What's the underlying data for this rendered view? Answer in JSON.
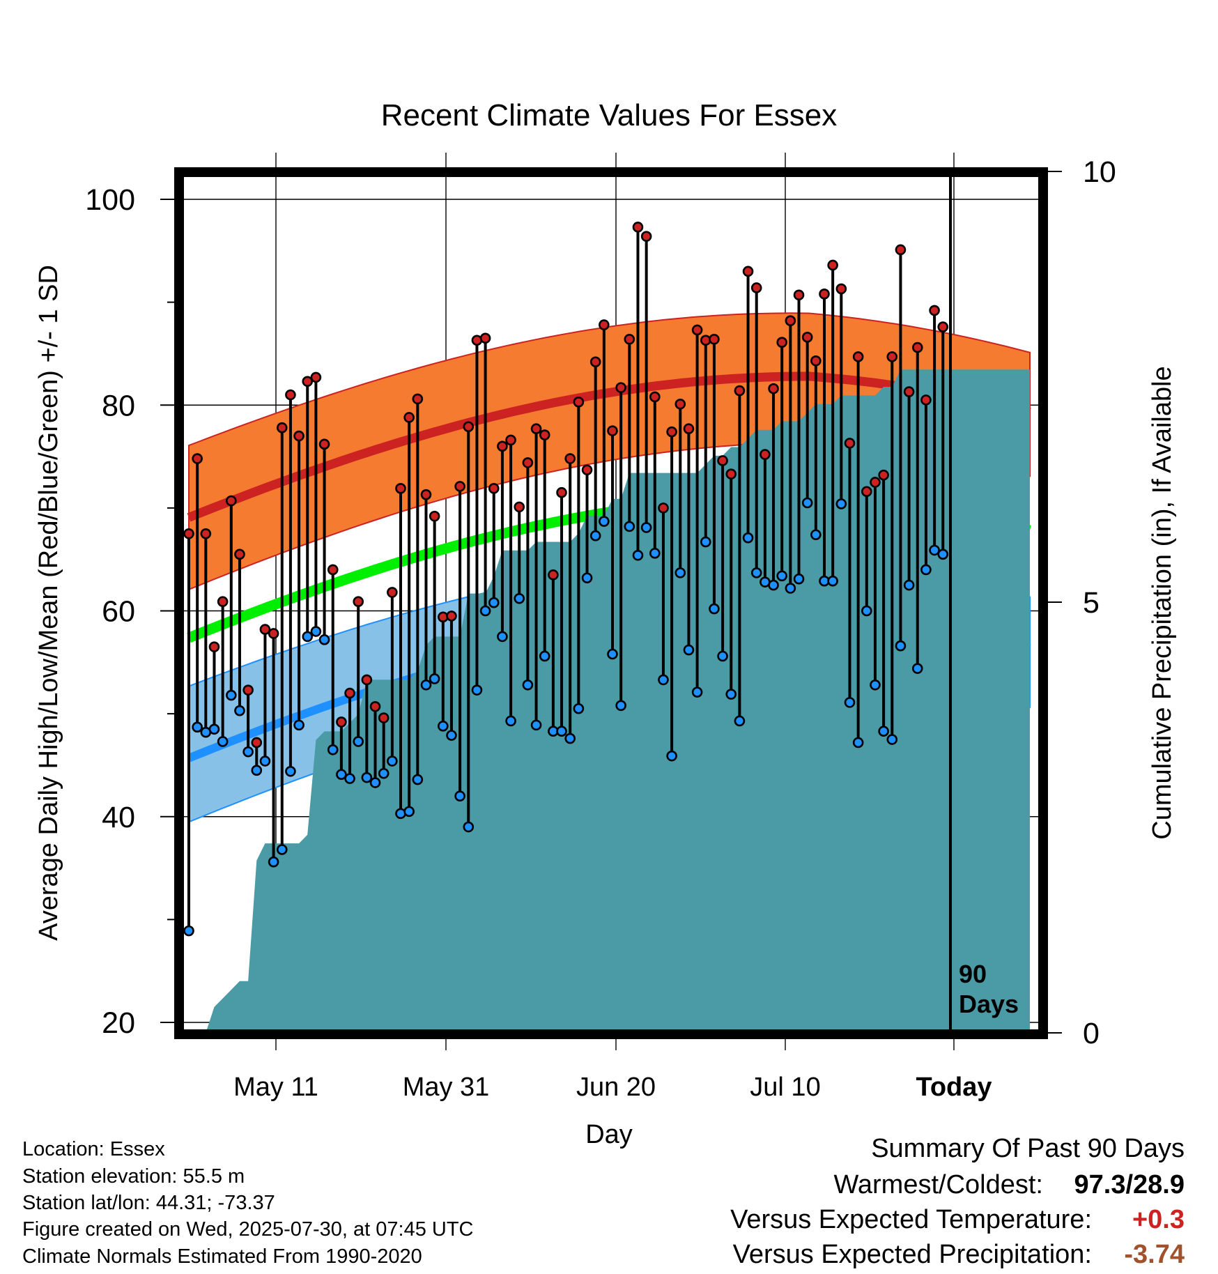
{
  "chart_data": {
    "type": "line",
    "title": "Recent Climate Values For Essex",
    "xlabel": "Day",
    "ylabel": "Average Daily High/Low/Mean (Red/Blue/Green) +/- 1 SD",
    "y2label": "Cumulative Precipitation (in), If Available",
    "ylim": [
      19,
      103
    ],
    "y2lim": [
      0,
      25
    ],
    "yticks": [
      "100",
      "80",
      "60",
      "40",
      "20"
    ],
    "y2ticks": [
      "15",
      "10",
      "5",
      "0"
    ],
    "x_tick_labels": [
      "May 11",
      "May 31",
      "Jun 20",
      "Jul 10",
      "Today"
    ],
    "today_label": "90 Days",
    "grid": true,
    "colors": {
      "high": "#cc2222",
      "high_band": "#f47b30",
      "low": "#1e90ff",
      "low_band": "#87c1e8",
      "mean": "#00ee00",
      "precip": "#4a9ba6"
    },
    "series": [
      {
        "name": "High",
        "values": [
          67.5,
          74.8,
          67.5,
          56.5,
          60.9,
          70.7,
          65.5,
          52.3,
          47.2,
          58.2,
          57.8,
          77.8,
          81,
          77,
          82.3,
          82.7,
          76.2,
          64,
          49.2,
          52,
          60.9,
          53.3,
          50.7,
          49.6,
          61.8,
          71.9,
          78.8,
          80.6,
          71.3,
          69.2,
          59.4,
          59.5,
          72.1,
          77.9,
          86.3,
          86.5,
          71.9,
          76,
          76.6,
          70.1,
          74.4,
          77.7,
          77.1,
          63.5,
          71.5,
          74.8,
          80.3,
          73.7,
          84.2,
          87.8,
          77.5,
          81.7,
          86.4,
          97.3,
          96.4,
          80.8,
          70,
          77.4,
          80.1,
          77.7,
          87.3,
          86.3,
          86.4,
          74.6,
          73.3,
          81.4,
          93,
          91.4,
          75.2,
          81.6,
          86.1,
          88.2,
          90.7,
          86.6,
          84.3,
          90.8,
          93.6,
          91.3,
          76.3,
          84.7,
          71.6,
          72.5,
          73.2,
          84.7,
          95.1,
          81.3,
          85.6,
          80.5,
          89.2,
          87.6
        ]
      },
      {
        "name": "Low",
        "values": [
          28.9,
          48.7,
          48.2,
          48.5,
          47.3,
          51.8,
          50.3,
          46.3,
          44.5,
          45.4,
          35.6,
          36.8,
          44.4,
          48.9,
          57.5,
          58,
          57.2,
          46.5,
          44.1,
          43.7,
          47.3,
          43.8,
          43.3,
          44.2,
          45.4,
          40.3,
          40.5,
          43.6,
          52.8,
          53.4,
          48.8,
          47.9,
          42,
          39,
          52.3,
          60,
          60.8,
          57.5,
          49.3,
          61.2,
          52.8,
          48.9,
          55.6,
          48.3,
          48.3,
          47.6,
          50.5,
          63.2,
          67.3,
          68.7,
          55.8,
          50.8,
          68.2,
          65.4,
          68.1,
          65.6,
          53.3,
          45.9,
          63.7,
          56.2,
          52.1,
          66.7,
          60.2,
          55.6,
          51.9,
          49.3,
          67.1,
          63.7,
          62.8,
          62.5,
          63.4,
          62.2,
          63.1,
          70.5,
          67.4,
          62.9,
          62.9,
          70.4,
          51.1,
          47.2,
          60,
          52.8,
          48.3,
          47.5,
          56.6,
          62.5,
          54.4,
          64,
          65.9,
          65.5
        ]
      },
      {
        "name": "Precip",
        "values": [
          0,
          0,
          0,
          0.3,
          0.4,
          0.5,
          0.6,
          0.6,
          2,
          2.2,
          2.2,
          2.2,
          2.2,
          2.2,
          2.3,
          3.4,
          3.5,
          3.5,
          3.5,
          3.6,
          3.7,
          4.1,
          4.1,
          4.1,
          4.1,
          4.1,
          4.1,
          4.2,
          4.5,
          4.6,
          4.6,
          4.6,
          4.6,
          5.1,
          5.1,
          5.1,
          5.3,
          5.6,
          5.6,
          5.6,
          5.6,
          5.7,
          5.7,
          5.7,
          5.7,
          5.7,
          5.8,
          6,
          6,
          6,
          6.2,
          6.2,
          6.5,
          6.5,
          6.5,
          6.5,
          6.5,
          6.5,
          6.5,
          6.5,
          6.5,
          6.6,
          6.7,
          6.7,
          6.8,
          6.8,
          6.9,
          7,
          7,
          7,
          7.1,
          7.1,
          7.1,
          7.2,
          7.3,
          7.3,
          7.3,
          7.4,
          7.4,
          7.4,
          7.4,
          7.4,
          7.5,
          7.5,
          7.7,
          7.7,
          7.7,
          7.7,
          7.7,
          7.7
        ]
      }
    ]
  },
  "info": {
    "location": "Location: Essex",
    "elevation": "Station elevation: 55.5 m",
    "latlon": "Station lat/lon: 44.31; -73.37",
    "created": "Figure created on Wed, 2025-07-30, at 07:45 UTC",
    "normals": "Climate Normals Estimated From 1990-2020"
  },
  "summary": {
    "title": "Summary Of Past 90 Days",
    "warm_cold_label": "Warmest/Coldest:",
    "warm_cold_value": "97.3/28.9",
    "temp_label": "Versus Expected Temperature:",
    "temp_value": "+0.3",
    "temp_color": "#cc2222",
    "precip_label": "Versus Expected Precipitation:",
    "precip_value": "-3.74",
    "precip_color": "#a0522d"
  }
}
